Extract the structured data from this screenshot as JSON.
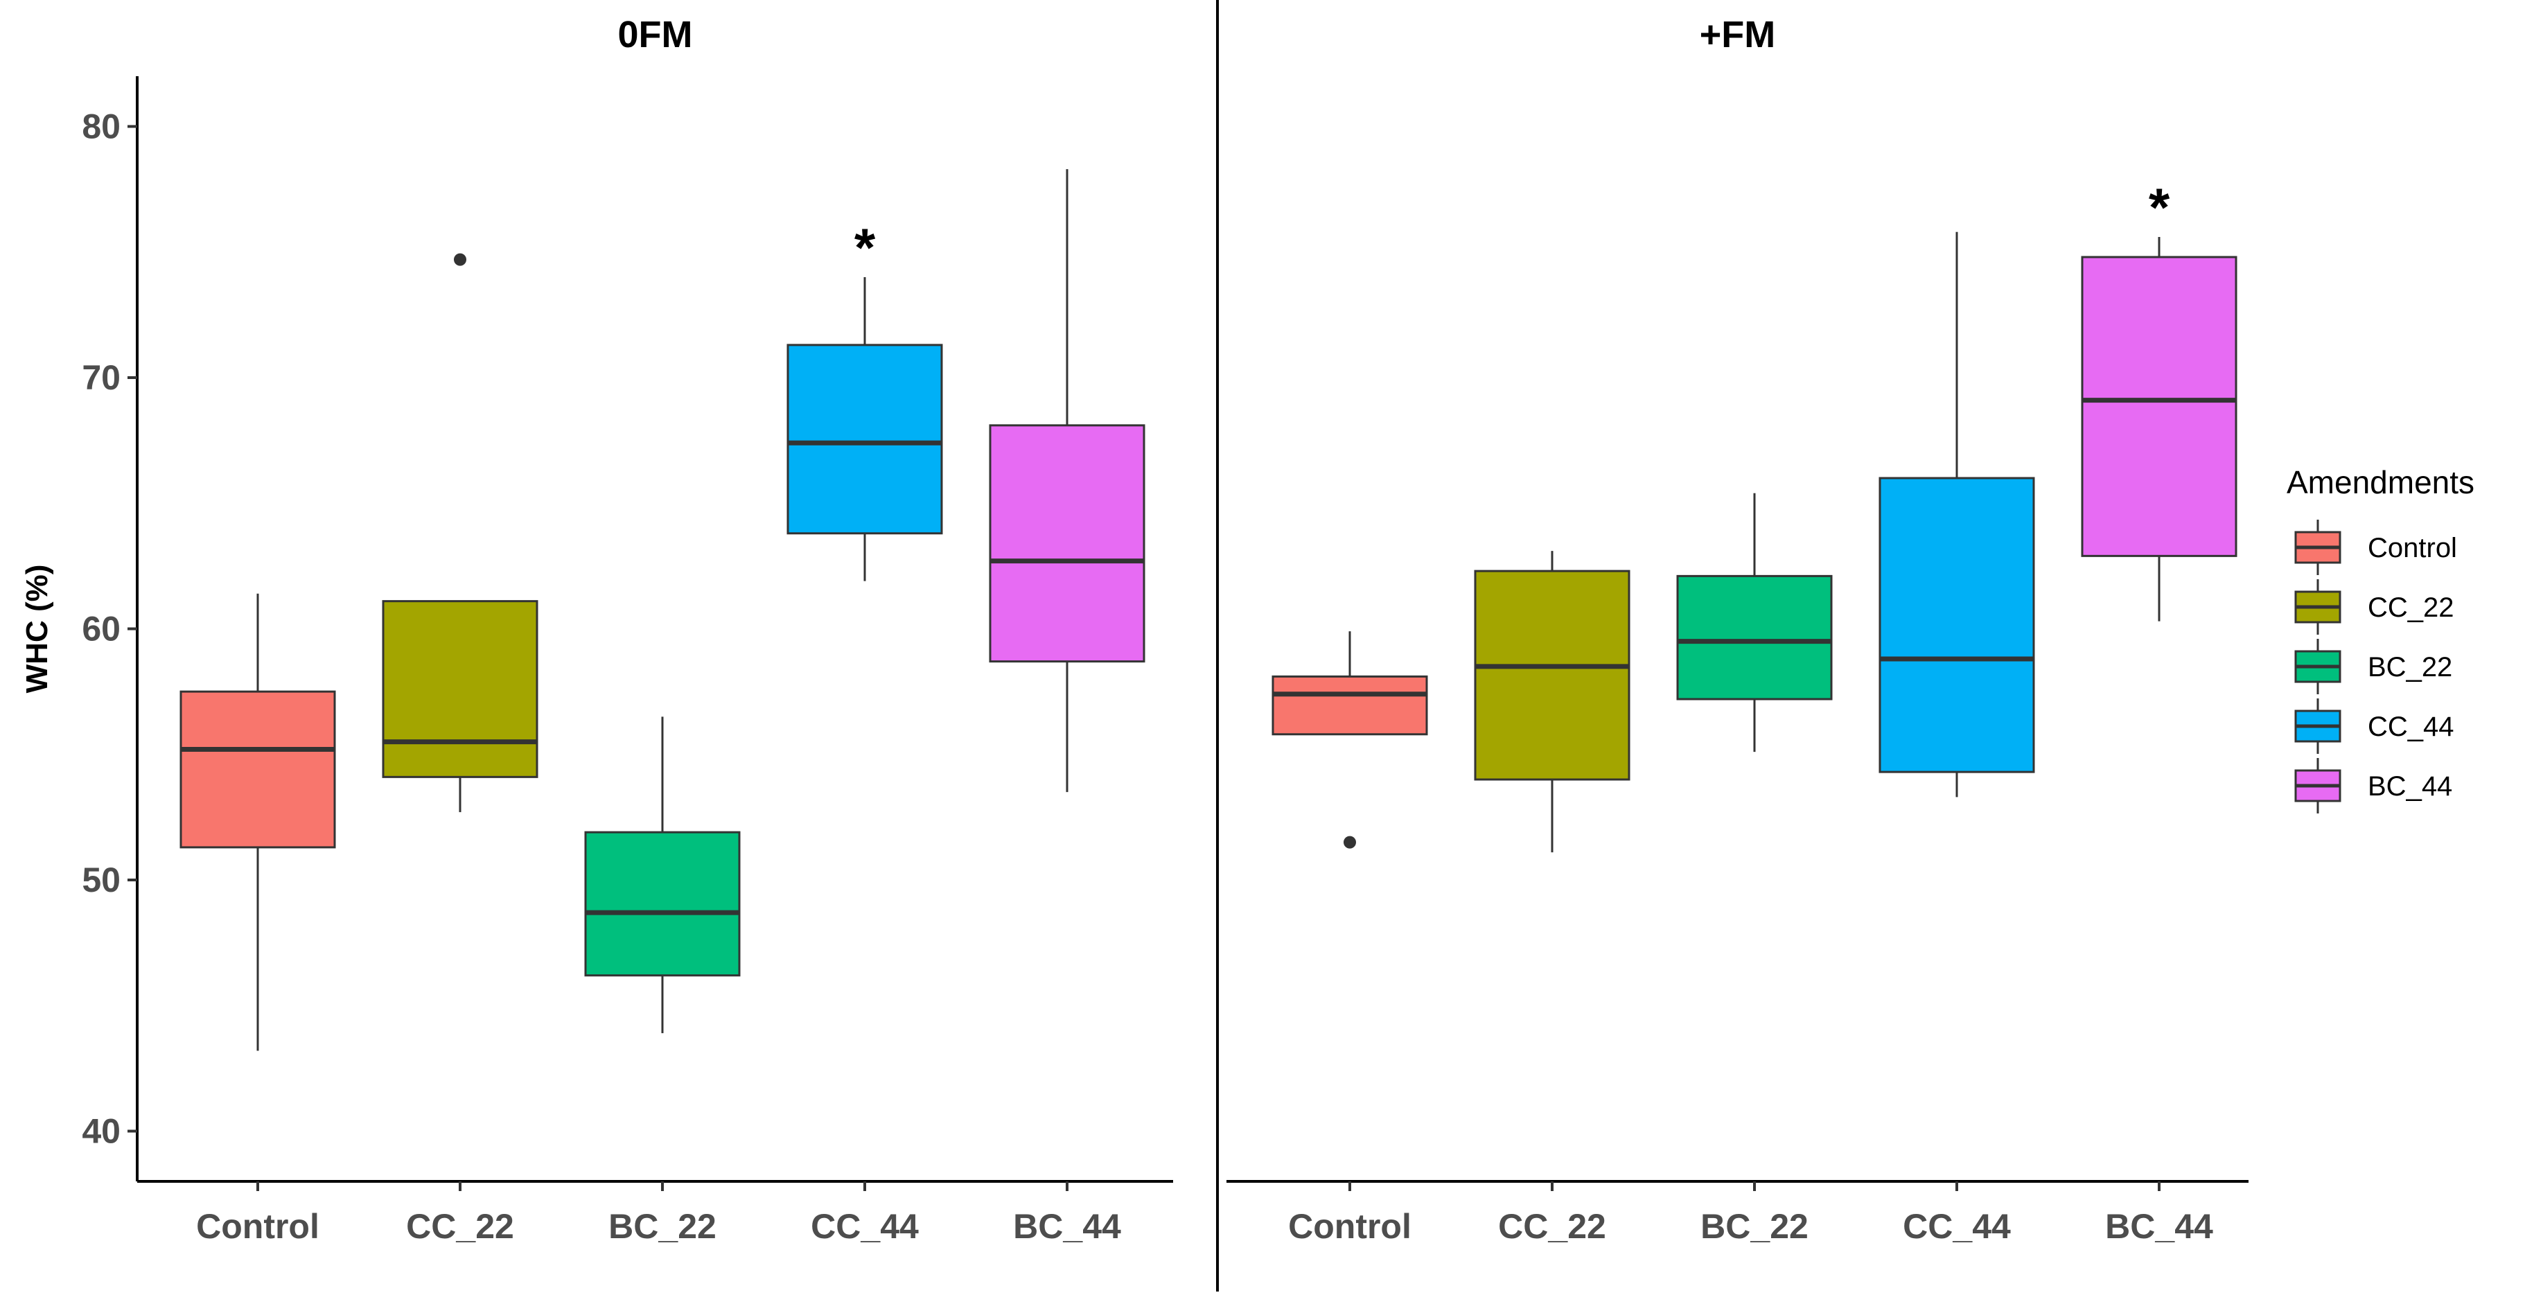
{
  "chart_data": {
    "type": "boxplot",
    "ylabel": "WHC (%)",
    "ylim": [
      38,
      82
    ],
    "yticks": [
      40,
      50,
      60,
      70,
      80
    ],
    "categories": [
      "Control",
      "CC_22",
      "BC_22",
      "CC_44",
      "BC_44"
    ],
    "legend": {
      "title": "Amendments",
      "position": "right",
      "items": [
        {
          "name": "Control",
          "color": "#F8766D"
        },
        {
          "name": "CC_22",
          "color": "#A3A500"
        },
        {
          "name": "BC_22",
          "color": "#00BF7D"
        },
        {
          "name": "CC_44",
          "color": "#00B0F6"
        },
        {
          "name": "BC_44",
          "color": "#E76BF3"
        }
      ]
    },
    "panels": [
      {
        "title": "0FM",
        "boxes": [
          {
            "category": "Control",
            "whisker_low": 43.2,
            "q1": 51.3,
            "median": 55.2,
            "q3": 57.5,
            "whisker_high": 61.4,
            "outliers": [],
            "annotation": ""
          },
          {
            "category": "CC_22",
            "whisker_low": 52.7,
            "q1": 54.1,
            "median": 55.5,
            "q3": 61.1,
            "whisker_high": 61.1,
            "outliers": [
              74.7
            ],
            "annotation": ""
          },
          {
            "category": "BC_22",
            "whisker_low": 43.9,
            "q1": 46.2,
            "median": 48.7,
            "q3": 51.9,
            "whisker_high": 56.5,
            "outliers": [],
            "annotation": ""
          },
          {
            "category": "CC_44",
            "whisker_low": 61.9,
            "q1": 63.8,
            "median": 67.4,
            "q3": 71.3,
            "whisker_high": 74.0,
            "outliers": [],
            "annotation": "*"
          },
          {
            "category": "BC_44",
            "whisker_low": 53.5,
            "q1": 58.7,
            "median": 62.7,
            "q3": 68.1,
            "whisker_high": 78.3,
            "outliers": [],
            "annotation": ""
          }
        ]
      },
      {
        "title": "+FM",
        "boxes": [
          {
            "category": "Control",
            "whisker_low": 55.8,
            "q1": 55.8,
            "median": 57.4,
            "q3": 58.1,
            "whisker_high": 59.9,
            "outliers": [
              51.5
            ],
            "annotation": ""
          },
          {
            "category": "CC_22",
            "whisker_low": 51.1,
            "q1": 54.0,
            "median": 58.5,
            "q3": 62.3,
            "whisker_high": 63.1,
            "outliers": [],
            "annotation": ""
          },
          {
            "category": "BC_22",
            "whisker_low": 55.1,
            "q1": 57.2,
            "median": 59.5,
            "q3": 62.1,
            "whisker_high": 65.4,
            "outliers": [],
            "annotation": ""
          },
          {
            "category": "CC_44",
            "whisker_low": 53.3,
            "q1": 54.3,
            "median": 58.8,
            "q3": 66.0,
            "whisker_high": 75.8,
            "outliers": [],
            "annotation": ""
          },
          {
            "category": "BC_44",
            "whisker_low": 60.3,
            "q1": 62.9,
            "median": 69.1,
            "q3": 74.8,
            "whisker_high": 75.6,
            "outliers": [],
            "annotation": "*"
          }
        ]
      }
    ]
  }
}
